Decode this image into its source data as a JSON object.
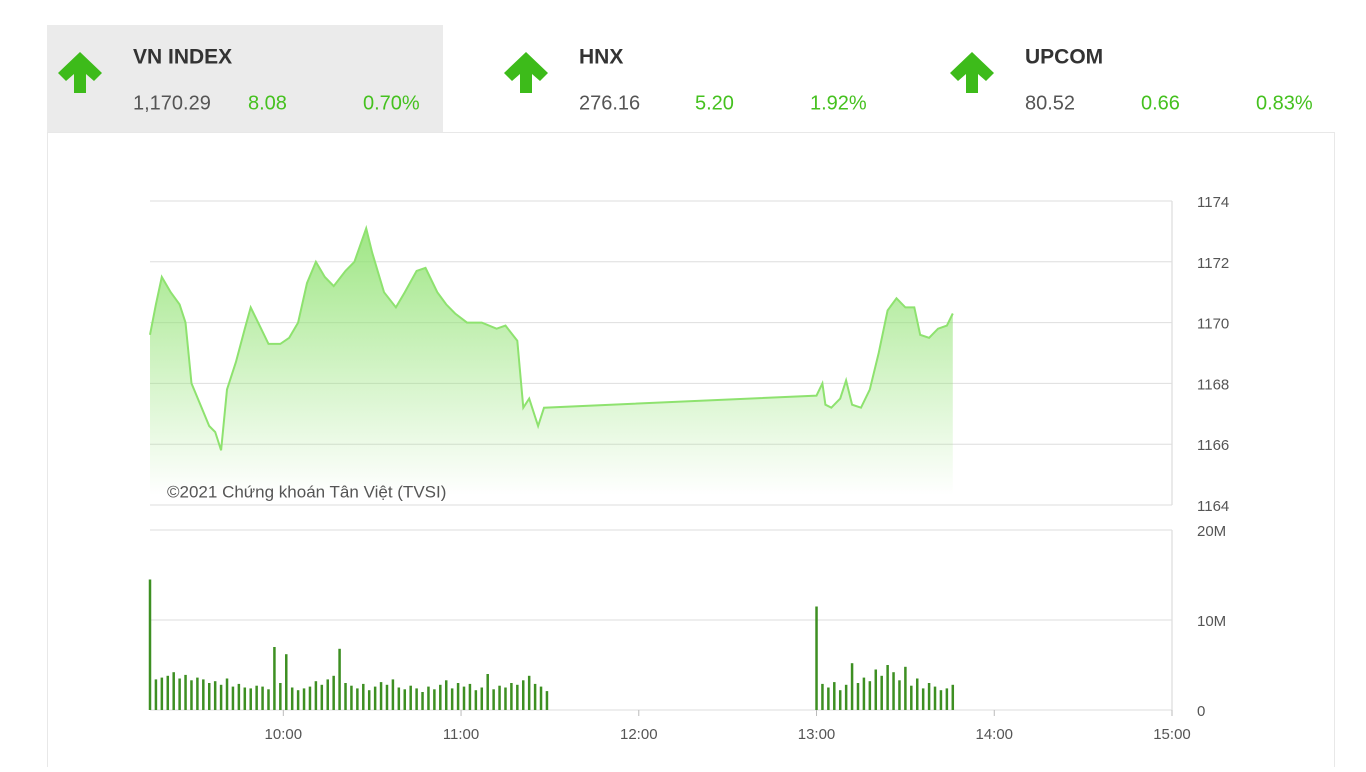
{
  "indices": [
    {
      "name": "VN INDEX",
      "value": "1,170.29",
      "change": "8.08",
      "percent": "0.70%"
    },
    {
      "name": "HNX",
      "value": "276.16",
      "change": "5.20",
      "percent": "1.92%"
    },
    {
      "name": "UPCOM",
      "value": "80.52",
      "change": "0.66",
      "percent": "0.83%"
    }
  ],
  "chart_data": [
    {
      "type": "area",
      "annotation": "©2021 Chứng khoán Tân Việt (TVSI)",
      "color": "#8ee26f",
      "xlim": [
        "09:15",
        "15:00"
      ],
      "ylim": [
        1164,
        1174
      ],
      "yticks": [
        1164,
        1166,
        1168,
        1170,
        1172,
        1174
      ],
      "grid": true,
      "x": [
        "09:15",
        "09:17",
        "09:19",
        "09:22",
        "09:25",
        "09:27",
        "09:29",
        "09:32",
        "09:35",
        "09:37",
        "09:39",
        "09:41",
        "09:44",
        "09:47",
        "09:49",
        "09:52",
        "09:55",
        "09:59",
        "10:02",
        "10:05",
        "10:08",
        "10:11",
        "10:14",
        "10:17",
        "10:21",
        "10:24",
        "10:28",
        "10:30",
        "10:34",
        "10:38",
        "10:41",
        "10:45",
        "10:48",
        "10:52",
        "10:55",
        "10:58",
        "11:02",
        "11:07",
        "11:12",
        "11:15",
        "11:19",
        "11:21",
        "11:23",
        "11:25",
        "11:26",
        "11:28",
        "13:00",
        "13:02",
        "13:03",
        "13:05",
        "13:08",
        "13:10",
        "13:12",
        "13:15",
        "13:18",
        "13:21",
        "13:24",
        "13:27",
        "13:30",
        "13:33",
        "13:35",
        "13:38",
        "13:41",
        "13:44",
        "13:46"
      ],
      "values": [
        1169.6,
        1170.6,
        1171.5,
        1171.0,
        1170.6,
        1170.0,
        1168.0,
        1167.3,
        1166.6,
        1166.4,
        1165.8,
        1167.8,
        1168.7,
        1169.8,
        1170.5,
        1169.9,
        1169.3,
        1169.3,
        1169.5,
        1170.0,
        1171.3,
        1172.0,
        1171.5,
        1171.2,
        1171.7,
        1172.0,
        1173.1,
        1172.3,
        1171.0,
        1170.5,
        1171.0,
        1171.7,
        1171.8,
        1171.0,
        1170.6,
        1170.3,
        1170.0,
        1170.0,
        1169.8,
        1169.9,
        1169.4,
        1167.2,
        1167.5,
        1166.9,
        1166.6,
        1167.2,
        1167.6,
        1168.0,
        1167.3,
        1167.2,
        1167.5,
        1168.1,
        1167.3,
        1167.2,
        1167.8,
        1169.0,
        1170.4,
        1170.8,
        1170.5,
        1170.5,
        1169.6,
        1169.5,
        1169.8,
        1169.9,
        1170.3
      ]
    },
    {
      "type": "bar",
      "color": "#3d8f22",
      "xlim": [
        "09:15",
        "15:00"
      ],
      "xticks": [
        "10:00",
        "11:00",
        "12:00",
        "13:00",
        "14:00",
        "15:00"
      ],
      "ylim": [
        0,
        20
      ],
      "yticks": [
        0,
        {
          "value": 10,
          "label": "10M"
        },
        {
          "value": 20,
          "label": "20M"
        }
      ],
      "grid": true,
      "x": [
        "09:15",
        "09:17",
        "09:19",
        "09:21",
        "09:23",
        "09:25",
        "09:27",
        "09:29",
        "09:31",
        "09:33",
        "09:35",
        "09:37",
        "09:39",
        "09:41",
        "09:43",
        "09:45",
        "09:47",
        "09:49",
        "09:51",
        "09:53",
        "09:55",
        "09:57",
        "09:59",
        "10:01",
        "10:03",
        "10:05",
        "10:07",
        "10:09",
        "10:11",
        "10:13",
        "10:15",
        "10:17",
        "10:19",
        "10:21",
        "10:23",
        "10:25",
        "10:27",
        "10:29",
        "10:31",
        "10:33",
        "10:35",
        "10:37",
        "10:39",
        "10:41",
        "10:43",
        "10:45",
        "10:47",
        "10:49",
        "10:51",
        "10:53",
        "10:55",
        "10:57",
        "10:59",
        "11:01",
        "11:03",
        "11:05",
        "11:07",
        "11:09",
        "11:11",
        "11:13",
        "11:15",
        "11:17",
        "11:19",
        "11:21",
        "11:23",
        "11:25",
        "11:27",
        "11:29",
        "13:00",
        "13:02",
        "13:04",
        "13:06",
        "13:08",
        "13:10",
        "13:12",
        "13:14",
        "13:16",
        "13:18",
        "13:20",
        "13:22",
        "13:24",
        "13:26",
        "13:28",
        "13:30",
        "13:32",
        "13:34",
        "13:36",
        "13:38",
        "13:40",
        "13:42",
        "13:44",
        "13:46"
      ],
      "values": [
        14.5,
        3.4,
        3.6,
        3.8,
        4.2,
        3.5,
        3.9,
        3.3,
        3.6,
        3.4,
        3.0,
        3.2,
        2.8,
        3.5,
        2.6,
        2.9,
        2.5,
        2.4,
        2.7,
        2.6,
        2.3,
        7.0,
        3.0,
        6.2,
        2.5,
        2.2,
        2.4,
        2.6,
        3.2,
        2.8,
        3.4,
        3.8,
        6.8,
        3.0,
        2.7,
        2.4,
        2.9,
        2.2,
        2.6,
        3.1,
        2.8,
        3.4,
        2.5,
        2.3,
        2.7,
        2.4,
        2.0,
        2.6,
        2.3,
        2.8,
        3.3,
        2.4,
        3.0,
        2.6,
        2.9,
        2.2,
        2.5,
        4.0,
        2.3,
        2.7,
        2.5,
        3.0,
        2.8,
        3.3,
        3.8,
        2.9,
        2.6,
        2.1,
        11.5,
        2.9,
        2.5,
        3.1,
        2.2,
        2.8,
        5.2,
        3.0,
        3.6,
        3.2,
        4.5,
        3.8,
        5.0,
        4.2,
        3.3,
        4.8,
        2.7,
        3.5,
        2.4,
        3.0,
        2.6,
        2.2,
        2.4,
        2.8
      ]
    }
  ]
}
